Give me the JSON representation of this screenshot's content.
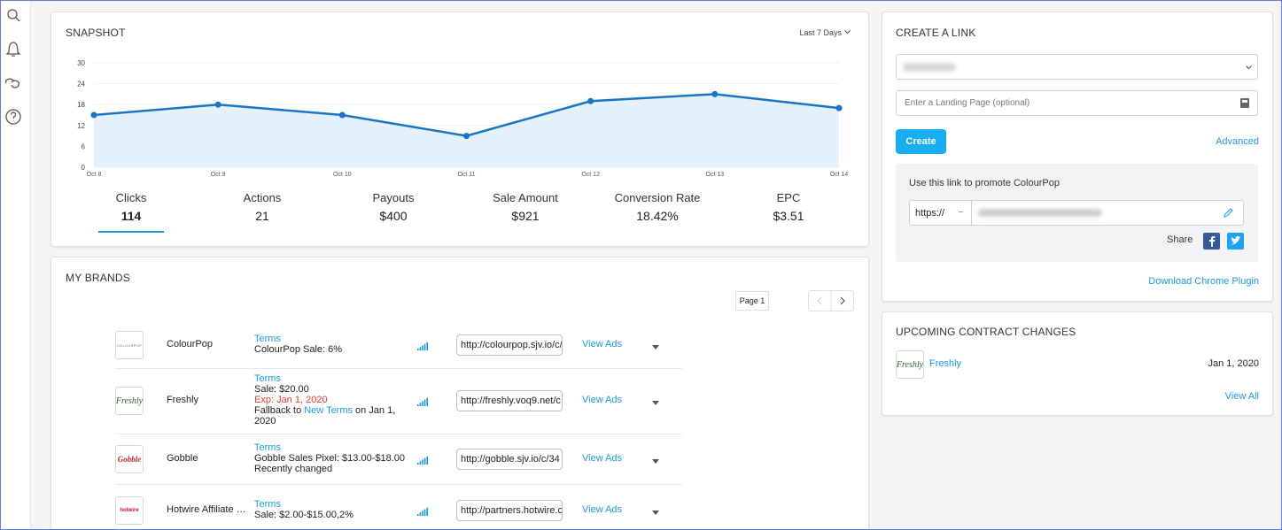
{
  "chart_data": {
    "type": "line",
    "categories": [
      "Oct 8",
      "Oct 9",
      "Oct 10",
      "Oct 11",
      "Oct 12",
      "Oct 13",
      "Oct 14"
    ],
    "series": [
      {
        "color": "#1a74c4",
        "values": [
          15,
          18,
          15,
          9,
          19,
          21,
          17
        ]
      }
    ],
    "fill": "#e4f0fa",
    "ylim": [
      0,
      30
    ],
    "yticks": [
      0,
      6,
      12,
      18,
      24,
      30
    ],
    "grid": true
  },
  "snapshot": {
    "title": "SNAPSHOT",
    "range": "Last 7 Days",
    "metrics": [
      {
        "label": "Clicks",
        "value": "114"
      },
      {
        "label": "Actions",
        "value": "21"
      },
      {
        "label": "Payouts",
        "value": "$400"
      },
      {
        "label": "Sale Amount",
        "value": "$921"
      },
      {
        "label": "Conversion Rate",
        "value": "18.42%"
      },
      {
        "label": "EPC",
        "value": "$3.51"
      }
    ]
  },
  "brands": {
    "title": "MY BRANDS",
    "page": "Page 1",
    "rows": [
      {
        "logo": "COLOURPOP",
        "name": "ColourPop",
        "terms": "Terms",
        "lines": [
          "ColourPop Sale: 6%"
        ],
        "url": "http://colourpop.sjv.io/c/",
        "view": "View Ads"
      },
      {
        "logo": "Freshly",
        "name": "Freshly",
        "terms": "Terms",
        "lines": [
          "Sale: $20.00"
        ],
        "expiry": "Exp: Jan 1, 2020",
        "fallback": {
          "before": "Fallback to",
          "link": "New Terms",
          "after": "on Jan 1, 2020"
        },
        "url": "http://freshly.voq9.net/c",
        "view": "View Ads"
      },
      {
        "logo": "Gobble",
        "name": "Gobble",
        "terms": "Terms",
        "lines": [
          "Gobble Sales Pixel: $13.00-$18.00",
          "Recently changed"
        ],
        "url": "http://gobble.sjv.io/c/34",
        "view": "View Ads"
      },
      {
        "logo": "hotwire",
        "name": "Hotwire Affiliate Program",
        "terms": "Terms",
        "lines": [
          "Sale: $2.00-$15.00,2%"
        ],
        "url": "http://partners.hotwire.c",
        "view": "View Ads"
      }
    ]
  },
  "create_link": {
    "title": "CREATE A LINK",
    "landing_placeholder": "Enter a Landing Page (optional)",
    "create": "Create",
    "advanced": "Advanced",
    "promote": "Use this link to promote ColourPop",
    "protocol": "https://",
    "share": "Share",
    "download": "Download Chrome Plugin"
  },
  "upcoming": {
    "title": "UPCOMING CONTRACT CHANGES",
    "items": [
      {
        "logo": "Freshly",
        "name": "Freshly",
        "date": "Jan 1, 2020"
      }
    ],
    "view_all": "View All"
  }
}
